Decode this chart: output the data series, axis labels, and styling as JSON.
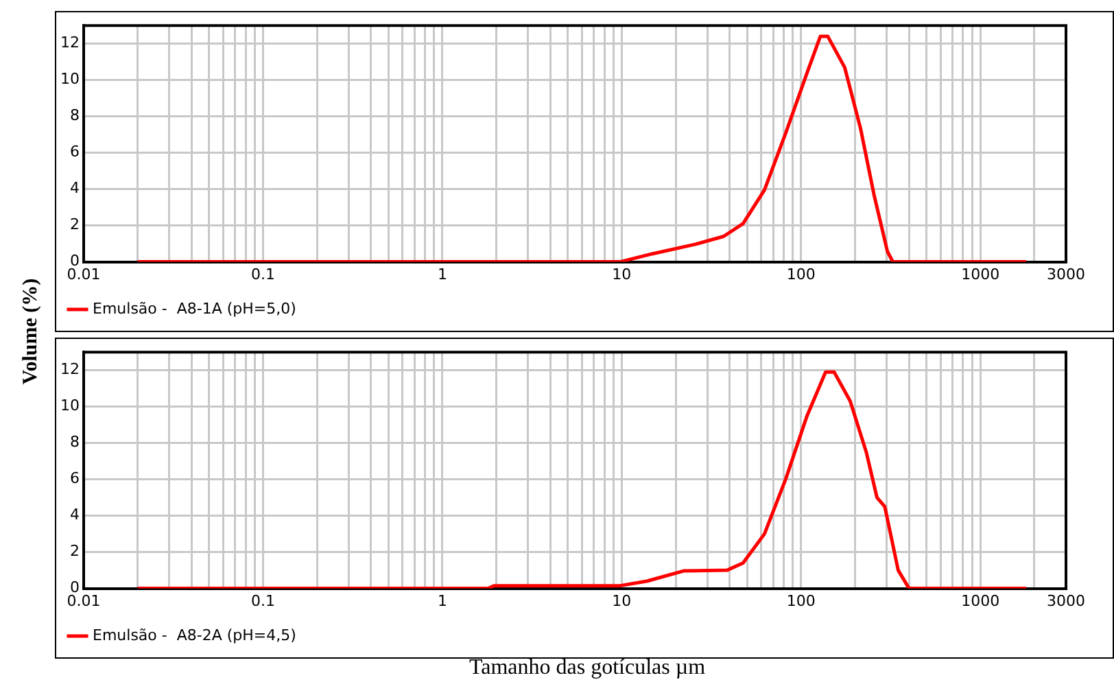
{
  "chart_data": [
    {
      "type": "line",
      "ylabel": "Volume (%)",
      "log": "x",
      "xlim": [
        0.01,
        3000
      ],
      "ylim": [
        0,
        13
      ],
      "grid": true,
      "legend": "bottom left",
      "marker": "none",
      "line_style": "solid",
      "xticks": [
        0.01,
        {
          "value": 0.02,
          "label": null
        },
        {
          "value": 0.03,
          "label": null
        },
        {
          "value": 0.04,
          "label": null
        },
        {
          "value": 0.05,
          "label": null
        },
        {
          "value": 0.06,
          "label": null
        },
        {
          "value": 0.07,
          "label": null
        },
        {
          "value": 0.08,
          "label": null
        },
        {
          "value": 0.09,
          "label": null
        },
        0.1,
        {
          "value": 0.2,
          "label": null
        },
        {
          "value": 0.3,
          "label": null
        },
        {
          "value": 0.4,
          "label": null
        },
        {
          "value": 0.5,
          "label": null
        },
        {
          "value": 0.6,
          "label": null
        },
        {
          "value": 0.7,
          "label": null
        },
        {
          "value": 0.8,
          "label": null
        },
        {
          "value": 0.9,
          "label": null
        },
        1,
        {
          "value": 2,
          "label": null
        },
        {
          "value": 3,
          "label": null
        },
        {
          "value": 4,
          "label": null
        },
        {
          "value": 5,
          "label": null
        },
        {
          "value": 6,
          "label": null
        },
        {
          "value": 7,
          "label": null
        },
        {
          "value": 8,
          "label": null
        },
        {
          "value": 9,
          "label": null
        },
        10,
        {
          "value": 20,
          "label": null
        },
        {
          "value": 30,
          "label": null
        },
        {
          "value": 40,
          "label": null
        },
        {
          "value": 50,
          "label": null
        },
        {
          "value": 60,
          "label": null
        },
        {
          "value": 70,
          "label": null
        },
        {
          "value": 80,
          "label": null
        },
        {
          "value": 90,
          "label": null
        },
        100,
        {
          "value": 200,
          "label": null
        },
        {
          "value": 300,
          "label": null
        },
        {
          "value": 400,
          "label": null
        },
        {
          "value": 500,
          "label": null
        },
        {
          "value": 600,
          "label": null
        },
        {
          "value": 700,
          "label": null
        },
        {
          "value": 800,
          "label": null
        },
        {
          "value": 900,
          "label": null
        },
        1000,
        {
          "value": 2000,
          "label": null
        },
        3000
      ],
      "yticks": [
        0,
        2,
        4,
        6,
        8,
        10,
        12
      ],
      "series": [
        {
          "name": "Emulsão -  A8-1A (pH=5,0)",
          "color": "#ff0000",
          "x": [
            0.02,
            9.8,
            14.8,
            25.6,
            37,
            47.5,
            62.5,
            82,
            108,
            128,
            141,
            175,
            215,
            255,
            303,
            325,
            1800
          ],
          "values": [
            0,
            0,
            0.44,
            0.96,
            1.4,
            2.1,
            3.95,
            7.07,
            10.4,
            12.4,
            12.4,
            10.7,
            7.3,
            3.7,
            0.57,
            0,
            0
          ]
        }
      ]
    },
    {
      "type": "line",
      "xlabel": "Tamanho das gotículas  µm",
      "log": "x",
      "xlim": [
        0.01,
        3000
      ],
      "ylim": [
        0,
        13
      ],
      "grid": true,
      "legend": "bottom left",
      "marker": "none",
      "line_style": "solid",
      "xticks": [
        0.01,
        {
          "value": 0.02,
          "label": null
        },
        {
          "value": 0.03,
          "label": null
        },
        {
          "value": 0.04,
          "label": null
        },
        {
          "value": 0.05,
          "label": null
        },
        {
          "value": 0.06,
          "label": null
        },
        {
          "value": 0.07,
          "label": null
        },
        {
          "value": 0.08,
          "label": null
        },
        {
          "value": 0.09,
          "label": null
        },
        0.1,
        {
          "value": 0.2,
          "label": null
        },
        {
          "value": 0.3,
          "label": null
        },
        {
          "value": 0.4,
          "label": null
        },
        {
          "value": 0.5,
          "label": null
        },
        {
          "value": 0.6,
          "label": null
        },
        {
          "value": 0.7,
          "label": null
        },
        {
          "value": 0.8,
          "label": null
        },
        {
          "value": 0.9,
          "label": null
        },
        1,
        {
          "value": 2,
          "label": null
        },
        {
          "value": 3,
          "label": null
        },
        {
          "value": 4,
          "label": null
        },
        {
          "value": 5,
          "label": null
        },
        {
          "value": 6,
          "label": null
        },
        {
          "value": 7,
          "label": null
        },
        {
          "value": 8,
          "label": null
        },
        {
          "value": 9,
          "label": null
        },
        10,
        {
          "value": 20,
          "label": null
        },
        {
          "value": 30,
          "label": null
        },
        {
          "value": 40,
          "label": null
        },
        {
          "value": 50,
          "label": null
        },
        {
          "value": 60,
          "label": null
        },
        {
          "value": 70,
          "label": null
        },
        {
          "value": 80,
          "label": null
        },
        {
          "value": 90,
          "label": null
        },
        100,
        {
          "value": 200,
          "label": null
        },
        {
          "value": 300,
          "label": null
        },
        {
          "value": 400,
          "label": null
        },
        {
          "value": 500,
          "label": null
        },
        {
          "value": 600,
          "label": null
        },
        {
          "value": 700,
          "label": null
        },
        {
          "value": 800,
          "label": null
        },
        {
          "value": 900,
          "label": null
        },
        1000,
        {
          "value": 2000,
          "label": null
        },
        3000
      ],
      "yticks": [
        0,
        2,
        4,
        6,
        8,
        10,
        12
      ],
      "series": [
        {
          "name": "Emulsão -  A8-2A (pH=4,5)",
          "color": "#ff0000",
          "x": [
            0.02,
            1.8,
            1.95,
            9.8,
            13.8,
            22.3,
            38.6,
            47.5,
            62.5,
            82,
            108,
            137,
            153,
            188,
            231,
            265,
            293,
            348,
            400,
            1800
          ],
          "values": [
            0,
            0,
            0.15,
            0.15,
            0.4,
            0.97,
            1.0,
            1.4,
            3.0,
            6.0,
            9.5,
            11.9,
            11.9,
            10.3,
            7.5,
            5.0,
            4.5,
            1.0,
            0,
            0
          ]
        }
      ]
    }
  ]
}
